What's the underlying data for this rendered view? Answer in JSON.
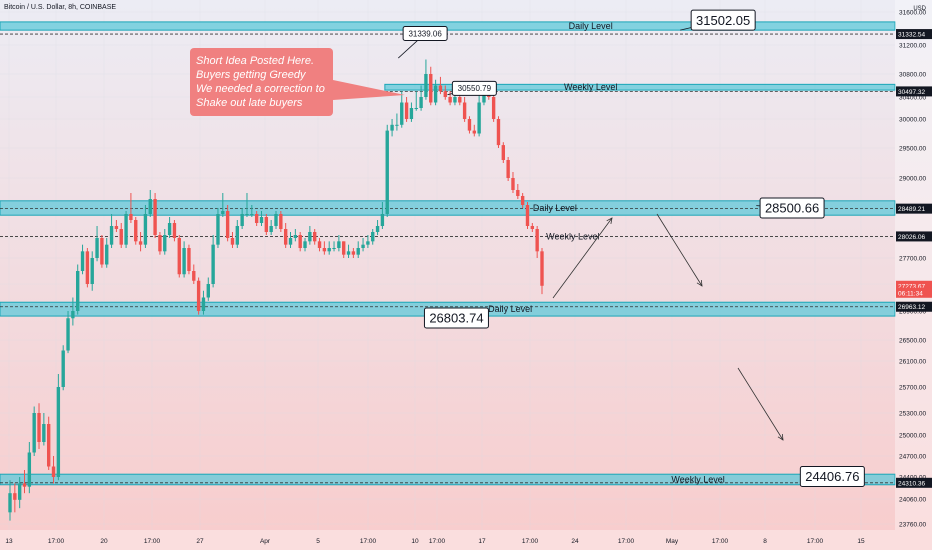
{
  "header": {
    "title": "Bitcoin / U.S. Dollar, 8h, COINBASE",
    "currency": "USD"
  },
  "theme": {
    "up": "#26a69a",
    "down": "#ef5350",
    "zone_fill": "#5fc9d9",
    "zone_stroke": "#1aa6b7",
    "bg_top": "#ececf4",
    "bg_bottom": "#f8cccc",
    "note_bg": "#f08080",
    "note_text": "#ffffff"
  },
  "chart_data": {
    "type": "candlestick",
    "y_ticks": [
      31600,
      31200,
      30800,
      30400,
      30000,
      29500,
      29000,
      28500,
      28000,
      27700,
      27300,
      26900,
      26500,
      26100,
      25700,
      25300,
      25000,
      24700,
      24400,
      24060,
      23760
    ],
    "x_ticks": [
      "13",
      "17:00",
      "20",
      "17:00",
      "27",
      "Apr",
      "5",
      "17:00",
      "10",
      "17:00",
      "17",
      "17:00",
      "24",
      "17:00",
      "May",
      "17:00",
      "8",
      "17:00",
      "15"
    ],
    "price_tags": [
      {
        "value": "31332.54",
        "price": 31332.54,
        "color": "#131722"
      },
      {
        "value": "30497.32",
        "price": 30497.32,
        "color": "#131722"
      },
      {
        "value": "28489.21",
        "price": 28489.21,
        "color": "#131722"
      },
      {
        "value": "28026.06",
        "price": 28026.06,
        "color": "#131722"
      },
      {
        "value": "27273.67",
        "price": 27273.67,
        "color": "#ef5350"
      },
      {
        "value": "06:11:34",
        "price": 27170,
        "color": "#ef5350"
      },
      {
        "value": "26963.12",
        "price": 26963.12,
        "color": "#131722"
      },
      {
        "value": "24310.36",
        "price": 24310.36,
        "color": "#131722"
      }
    ],
    "zones": [
      {
        "label": "Daily Level",
        "top": 31480,
        "bottom": 31380,
        "line": 31332.54,
        "x0": 0,
        "x1": 1,
        "label_x": 0.66
      },
      {
        "label": "Weekly Level",
        "top": 30620,
        "bottom": 30520,
        "line": 30497.32,
        "x0": 0.43,
        "x1": 1,
        "label_x": 0.66
      },
      {
        "label": "Daily Level",
        "top": 28620,
        "bottom": 28380,
        "line": 28489.21,
        "x0": 0,
        "x1": 1,
        "label_x": 0.62
      },
      {
        "label": "Daily Level",
        "top": 27030,
        "bottom": 26830,
        "line": 26963.12,
        "x0": 0,
        "x1": 1,
        "label_x": 0.57
      },
      {
        "label": "Weekly Level",
        "top": 24440,
        "bottom": 24280,
        "line": 24310.36,
        "x0": 0,
        "x1": 1,
        "label_x": 0.78
      }
    ],
    "extra_lines": [
      {
        "label": "Weekly Level",
        "price": 28026.06,
        "label_x": 0.64
      }
    ],
    "callouts": [
      {
        "text": "31502.05",
        "size": "large",
        "x": 0.808,
        "price": 31502.05,
        "ax": 0.76,
        "aprice": 31380
      },
      {
        "text": "31339.06",
        "size": "small",
        "x": 0.475,
        "price": 31339.06,
        "ax": 0.445,
        "aprice": 31020
      },
      {
        "text": "30550.79",
        "size": "small",
        "x": 0.53,
        "price": 30550.79,
        "ax": 0.5,
        "aprice": 30440
      },
      {
        "text": "28500.66",
        "size": "large",
        "x": 0.885,
        "price": 28500.66,
        "ax": 0.845,
        "aprice": 28540
      },
      {
        "text": "26803.74",
        "size": "large",
        "x": 0.51,
        "price": 26803.74,
        "ax": 0.48,
        "aprice": 26880
      },
      {
        "text": "24406.76",
        "size": "large",
        "x": 0.93,
        "price": 24406.76,
        "ax": 0.895,
        "aprice": 24360
      }
    ],
    "note": {
      "lines": [
        "Short Idea Posted Here.",
        "Buyers getting Greedy",
        "We needed a correction to",
        "Shake out late buyers"
      ]
    },
    "series": {
      "open": [
        23900,
        24150,
        24050,
        24300,
        24250,
        24750,
        25300,
        24900,
        25150,
        24550,
        24400,
        25700,
        26300,
        26800,
        26900,
        27500,
        27800,
        27300,
        27700,
        28000,
        27600,
        27900,
        28200,
        28150,
        27900,
        28400,
        28300,
        27950,
        27900,
        28400,
        28650,
        28050,
        27800,
        28050,
        28250,
        28000,
        27450,
        27850,
        27500,
        27350,
        26900,
        27100,
        27300,
        27900,
        28400,
        28450,
        28000,
        27900,
        28200,
        28400,
        28400,
        28400,
        28250,
        28350,
        28100,
        28200,
        28400,
        28150,
        27900,
        28000,
        28050,
        27850,
        27950,
        28100,
        27950,
        27850,
        27800,
        27850,
        27850,
        27950,
        27750,
        27800,
        27750,
        27850,
        27900,
        27950,
        28100,
        28200,
        28400,
        29800,
        29900,
        29900,
        30300,
        30000,
        30200,
        30200,
        30400,
        30800,
        30300,
        30600,
        30500,
        30400,
        30300,
        30400,
        30300,
        30000,
        29800,
        29750,
        30300,
        30600,
        30400,
        30000,
        29550,
        29300,
        29000,
        28800,
        28700,
        28550,
        28200,
        28150,
        27800
      ],
      "close": [
        24150,
        24050,
        24300,
        24250,
        24750,
        25300,
        24900,
        25150,
        24550,
        24400,
        25700,
        26300,
        26800,
        26900,
        27500,
        27800,
        27300,
        27700,
        28000,
        27600,
        27900,
        28200,
        28150,
        27900,
        28400,
        28300,
        27950,
        27900,
        28400,
        28650,
        28050,
        27800,
        28050,
        28250,
        28000,
        27450,
        27850,
        27500,
        27350,
        26900,
        27100,
        27300,
        27900,
        28400,
        28450,
        28000,
        27900,
        28200,
        28400,
        28400,
        28400,
        28250,
        28350,
        28100,
        28200,
        28400,
        28150,
        27900,
        28000,
        28050,
        27850,
        27950,
        28100,
        27950,
        27850,
        27800,
        27850,
        27850,
        27950,
        27750,
        27800,
        27750,
        27850,
        27900,
        27950,
        28100,
        28200,
        28400,
        29800,
        29900,
        29900,
        30300,
        30000,
        30200,
        30200,
        30400,
        30800,
        30300,
        30600,
        30500,
        30400,
        30300,
        30400,
        30300,
        30000,
        29800,
        29750,
        30300,
        30600,
        30400,
        30000,
        29550,
        29300,
        29000,
        28800,
        28700,
        28550,
        28200,
        28150,
        27800,
        27273.67
      ],
      "high": [
        24350,
        24300,
        24400,
        24500,
        24900,
        25400,
        25450,
        25300,
        25250,
        24700,
        25900,
        26400,
        26900,
        27100,
        27600,
        27900,
        27850,
        27800,
        28200,
        28050,
        28000,
        28400,
        28300,
        28250,
        28450,
        28750,
        28350,
        28100,
        28550,
        28800,
        28750,
        28100,
        28150,
        28350,
        28300,
        28050,
        27950,
        27900,
        27600,
        27400,
        27200,
        27400,
        28050,
        28500,
        28750,
        28550,
        28100,
        28300,
        28500,
        28750,
        28550,
        28450,
        28450,
        28400,
        28300,
        28450,
        28450,
        28250,
        28100,
        28150,
        28100,
        28000,
        28200,
        28150,
        28000,
        27950,
        27950,
        27950,
        28050,
        27950,
        27900,
        27850,
        27950,
        28000,
        28050,
        28150,
        28300,
        28600,
        29900,
        30000,
        30100,
        30500,
        30400,
        30300,
        30500,
        30600,
        31000,
        30900,
        30700,
        30750,
        30600,
        30500,
        30550,
        30450,
        30400,
        30050,
        29900,
        30500,
        30650,
        30600,
        30450,
        30050,
        29600,
        29350,
        29100,
        28900,
        28750,
        28600,
        28250,
        28200,
        27850
      ],
      "low": [
        23800,
        23900,
        23950,
        24150,
        24150,
        24700,
        24800,
        24850,
        24500,
        24300,
        24350,
        25650,
        26250,
        26700,
        26850,
        27450,
        27250,
        27200,
        27650,
        27550,
        27550,
        27850,
        28100,
        27850,
        27850,
        28250,
        27900,
        27800,
        27850,
        28350,
        28000,
        27750,
        27750,
        28000,
        27950,
        27400,
        27400,
        27450,
        27300,
        26850,
        26850,
        27050,
        27250,
        27850,
        28350,
        27950,
        27850,
        27850,
        28150,
        28350,
        28350,
        28200,
        28200,
        28050,
        28050,
        28150,
        28100,
        27850,
        27850,
        27950,
        27800,
        27800,
        27900,
        27900,
        27800,
        27750,
        27750,
        27800,
        27800,
        27700,
        27700,
        27700,
        27700,
        27800,
        27850,
        27900,
        28050,
        28150,
        28350,
        29700,
        29800,
        29850,
        29950,
        29950,
        30150,
        30150,
        30350,
        30250,
        30250,
        30450,
        30350,
        30250,
        30250,
        30250,
        29950,
        29750,
        29700,
        29700,
        30250,
        30350,
        29950,
        29500,
        29250,
        28950,
        28750,
        28650,
        28500,
        28150,
        28100,
        27700,
        27150
      ]
    }
  }
}
